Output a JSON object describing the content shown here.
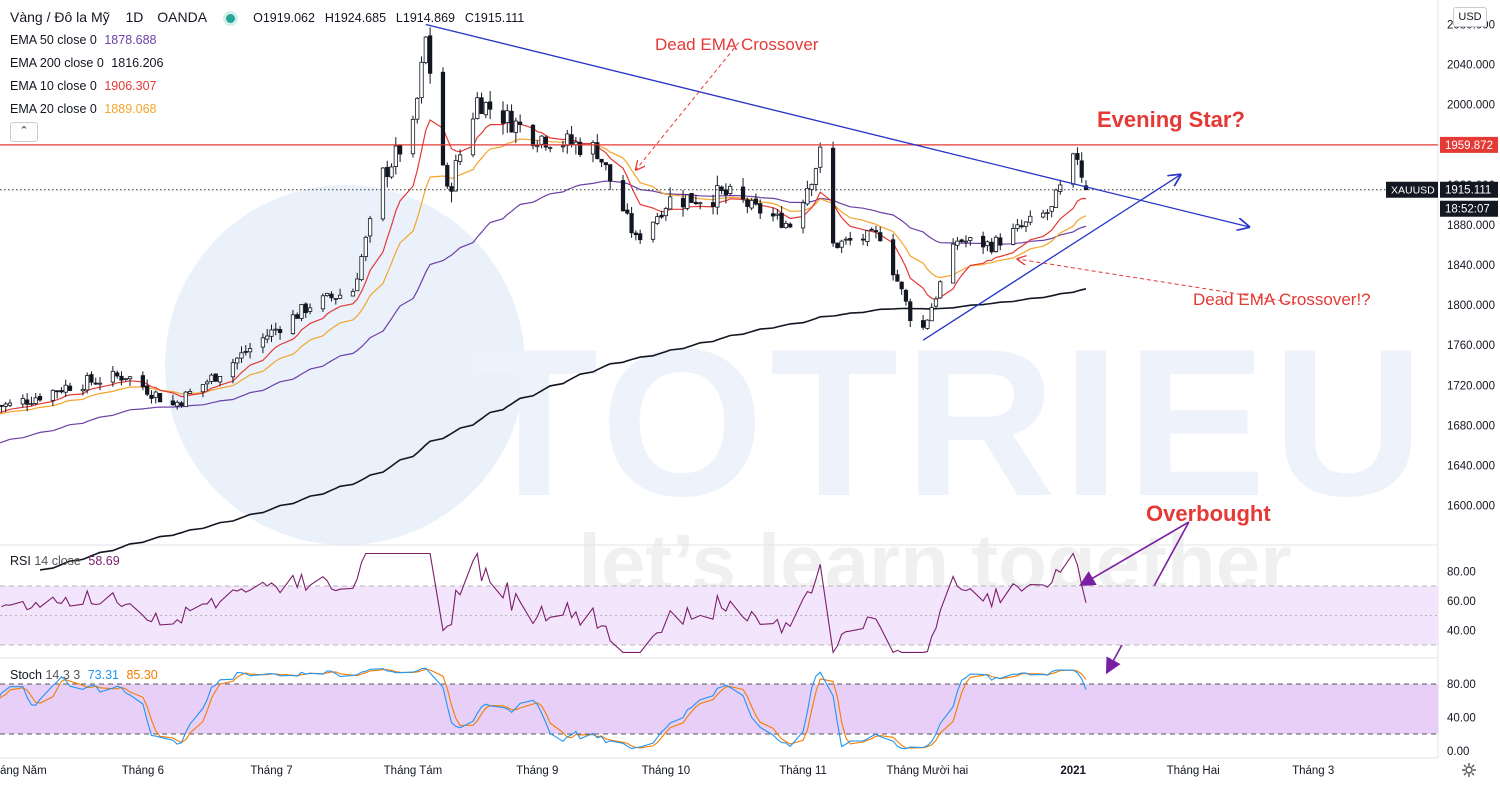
{
  "header": {
    "symbol": "Vàng / Đô la Mỹ",
    "interval": "1D",
    "exchange": "OANDA",
    "open_label": "O",
    "open": "1919.062",
    "high_label": "H",
    "high": "1924.685",
    "low_label": "L",
    "low": "1914.869",
    "close_label": "C",
    "close": "1915.111"
  },
  "indicators": [
    {
      "label": "EMA 50 close 0",
      "value": "1878.688",
      "color": "#6c3fa6"
    },
    {
      "label": "EMA 200 close 0",
      "value": "1816.206",
      "color": "#131722"
    },
    {
      "label": "EMA 10 close 0",
      "value": "1906.307",
      "color": "#e53935"
    },
    {
      "label": "EMA 20 close 0",
      "value": "1889.068",
      "color": "#f3a52c"
    }
  ],
  "currency_button": "USD",
  "collapse_icon": "chevron-up-icon",
  "settings_icon": "gear-icon",
  "price_axis": {
    "ticks": [
      "2080.000",
      "2040.000",
      "2000.000",
      "1960.000",
      "1920.000",
      "1880.000",
      "1840.000",
      "1800.000",
      "1760.000",
      "1720.000",
      "1680.000",
      "1640.000",
      "1600.000"
    ],
    "tag_resistance": "1959.872",
    "tag_symbol": "XAUUSD",
    "tag_last": "1915.111",
    "tag_countdown": "18:52:07"
  },
  "time_axis": {
    "labels": [
      "áng Năm",
      "Tháng 6",
      "Tháng 7",
      "Tháng Tám",
      "Tháng 9",
      "Tháng 10",
      "Tháng 11",
      "Tháng Mười hai",
      "2021",
      "Tháng Hai",
      "Tháng 3"
    ]
  },
  "annotations": {
    "dead_ema_1": "Dead EMA Crossover",
    "dead_ema_2": "Dead EMA Crossover!?",
    "evening_star": "Evening Star?",
    "overbought": "Overbought",
    "watermark_logo": "TOTRIEU",
    "watermark_slogan": "let’s learn together"
  },
  "rsi": {
    "label": "RSI",
    "params": "14 close",
    "value": "58.69",
    "ticks": [
      "80.00",
      "60.00",
      "40.00"
    ]
  },
  "stoch": {
    "label": "Stoch",
    "params": "14 3 3",
    "k": "73.31",
    "d": "85.30",
    "ticks": [
      "80.00",
      "40.00",
      "0.00"
    ]
  },
  "colors": {
    "bull": "#ffffff",
    "bear": "#131722",
    "ema10": "#e53935",
    "ema20": "#f3a52c",
    "ema50": "#6c3fa6",
    "ema200": "#131722",
    "trend": "#2634c7",
    "resistance": "#e53935",
    "annotation": "#e53935",
    "overbought_arrow": "#7b1fa2",
    "rsi_line": "#7b1f6b",
    "stoch_k": "#2196f3",
    "stoch_d": "#f57c00",
    "band_fill": "#f3e5fc",
    "stoch_fill": "#e7cff7"
  },
  "chart_data": {
    "type": "candlestick",
    "symbol": "XAUUSD",
    "price_range": [
      1560,
      2090
    ],
    "months": [
      "áng Năm",
      "Tháng 6",
      "Tháng 7",
      "Tháng Tám",
      "Tháng 9",
      "Tháng 10",
      "Tháng 11",
      "Tháng Mười hai",
      "2021",
      "Tháng Hai",
      "Tháng 3"
    ],
    "close_path": [
      [
        "2020-05-01",
        1700
      ],
      [
        "2020-05-15",
        1720
      ],
      [
        "2020-05-28",
        1730
      ],
      [
        "2020-06-08",
        1700
      ],
      [
        "2020-06-18",
        1730
      ],
      [
        "2020-06-30",
        1770
      ],
      [
        "2020-07-10",
        1800
      ],
      [
        "2020-07-20",
        1815
      ],
      [
        "2020-07-27",
        1930
      ],
      [
        "2020-08-03",
        1975
      ],
      [
        "2020-08-06",
        2065
      ],
      [
        "2020-08-11",
        1910
      ],
      [
        "2020-08-18",
        2005
      ],
      [
        "2020-08-31",
        1970
      ],
      [
        "2020-09-15",
        1955
      ],
      [
        "2020-09-24",
        1865
      ],
      [
        "2020-10-02",
        1905
      ],
      [
        "2020-10-15",
        1910
      ],
      [
        "2020-10-30",
        1880
      ],
      [
        "2020-11-06",
        1950
      ],
      [
        "2020-11-09",
        1860
      ],
      [
        "2020-11-20",
        1870
      ],
      [
        "2020-11-27",
        1790
      ],
      [
        "2020-11-30",
        1777
      ],
      [
        "2020-12-08",
        1865
      ],
      [
        "2020-12-16",
        1860
      ],
      [
        "2020-12-30",
        1895
      ],
      [
        "2021-01-05",
        1950
      ],
      [
        "2021-01-07",
        1915
      ]
    ],
    "ema_last": {
      "EMA 10": 1906.307,
      "EMA 20": 1889.068,
      "EMA 50": 1878.688,
      "EMA 200": 1816.206
    },
    "resistance": 1959.872,
    "last_price": 1915.111,
    "rsi_last": 58.69,
    "stoch_last": {
      "k": 73.31,
      "d": 85.3
    },
    "rsi_bands": [
      30,
      70
    ],
    "stoch_bands": [
      20,
      80
    ]
  }
}
